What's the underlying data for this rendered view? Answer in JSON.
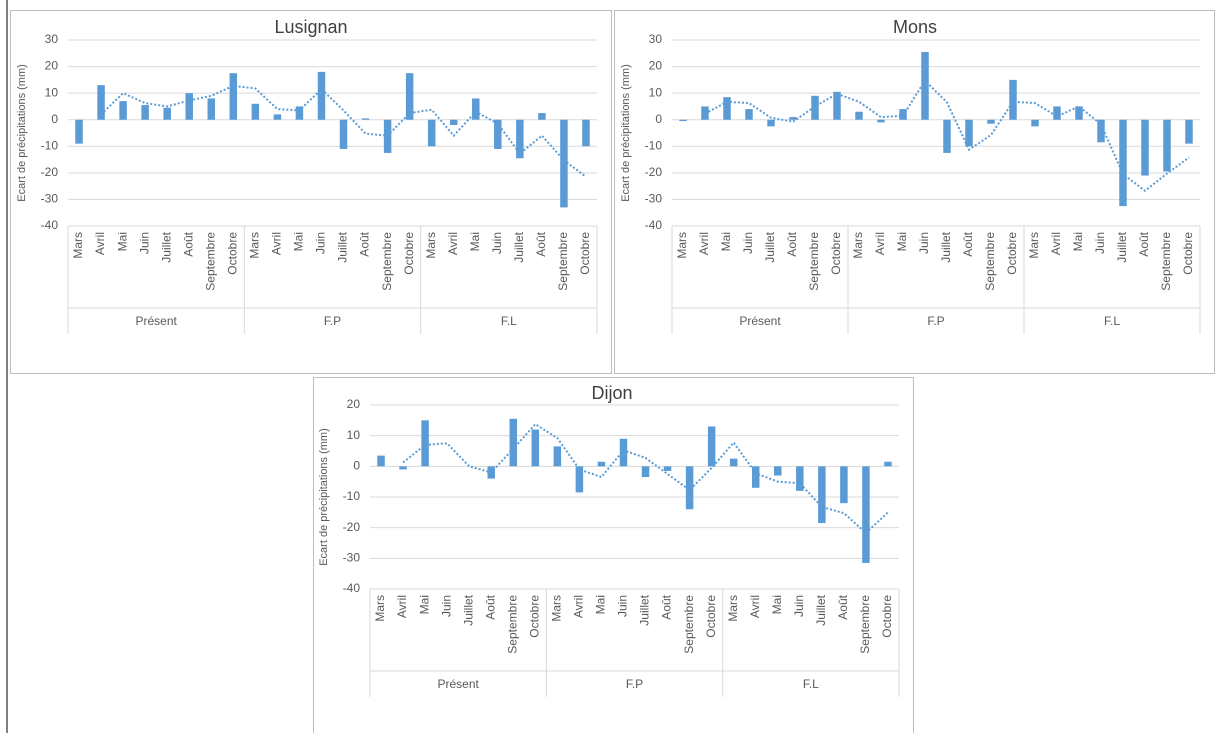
{
  "chart_data": [
    {
      "type": "bar",
      "title": "Lusignan",
      "ylabel": "Ecart de précipitations (mm)",
      "categories": [
        "Mars",
        "Avril",
        "Mai",
        "Juin",
        "Juillet",
        "Août",
        "Septembre",
        "Octobre",
        "Mars",
        "Avril",
        "Mai",
        "Juin",
        "Juillet",
        "Août",
        "Septembre",
        "Octobre",
        "Mars",
        "Avril",
        "Mai",
        "Juin",
        "Juillet",
        "Août",
        "Septembre",
        "Octobre"
      ],
      "group_labels": [
        "Présent",
        "F.P",
        "F.L"
      ],
      "values": [
        -9,
        13,
        7,
        5.5,
        4.5,
        10,
        8,
        17.5,
        6,
        2,
        5,
        18,
        -11,
        0.5,
        -12.5,
        17.5,
        -10,
        -2,
        8,
        -11,
        -14.5,
        2.5,
        -33,
        -10
      ],
      "color": "#5b9bd5",
      "trendline": {
        "style": "dotted",
        "color": "#5b9bd5",
        "values": [
          null,
          2,
          10,
          6.25,
          5,
          7.25,
          9,
          12.75,
          11.75,
          4,
          3.5,
          11.5,
          3.5,
          -5.25,
          -6,
          2.5,
          3.75,
          -6,
          3,
          -1.5,
          -12.75,
          -6,
          -15.25,
          -21.5
        ]
      },
      "ylim": [
        -40,
        30
      ],
      "yticks": [
        -40,
        -30,
        -20,
        -10,
        0,
        10,
        20,
        30
      ],
      "grid": true
    },
    {
      "type": "bar",
      "title": "Mons",
      "ylabel": "Ecart de précipitations (mm)",
      "categories": [
        "Mars",
        "Avril",
        "Mai",
        "Juin",
        "Juillet",
        "Août",
        "Septembre",
        "Octobre",
        "Mars",
        "Avril",
        "Mai",
        "Juin",
        "Juillet",
        "Août",
        "Septembre",
        "Octobre",
        "Mars",
        "Avril",
        "Mai",
        "Juin",
        "Juillet",
        "Août",
        "Septembre",
        "Octobre"
      ],
      "group_labels": [
        "Présent",
        "F.P",
        "F.L"
      ],
      "values": [
        -0.5,
        5,
        8.5,
        4,
        -2.5,
        1,
        9,
        10.5,
        3,
        -1,
        4,
        25.5,
        -12.5,
        -10,
        -1.5,
        15,
        -2.5,
        5,
        5,
        -8.5,
        -32.5,
        -21,
        -19.5,
        -9
      ],
      "color": "#5b9bd5",
      "trendline": {
        "style": "dotted",
        "color": "#5b9bd5",
        "values": [
          null,
          2.25,
          6.75,
          6.25,
          0.75,
          -0.75,
          5,
          9.75,
          6.75,
          1,
          1.5,
          14.75,
          6.5,
          -11.25,
          -5.75,
          6.75,
          6.25,
          1.25,
          5,
          -1.75,
          -20.5,
          -26.75,
          -20.25,
          -14.25
        ]
      },
      "ylim": [
        -40,
        30
      ],
      "yticks": [
        -40,
        -30,
        -20,
        -10,
        0,
        10,
        20,
        30
      ],
      "grid": true
    },
    {
      "type": "bar",
      "title": "Dijon",
      "ylabel": "Ecart de précipitations (mm)",
      "categories": [
        "Mars",
        "Avril",
        "Mai",
        "Juin",
        "Juillet",
        "Août",
        "Septembre",
        "Octobre",
        "Mars",
        "Avril",
        "Mai",
        "Juin",
        "Juillet",
        "Août",
        "Septembre",
        "Octobre",
        "Mars",
        "Avril",
        "Mai",
        "Juin",
        "Juillet",
        "Août",
        "Septembre",
        "Octobre"
      ],
      "group_labels": [
        "Présent",
        "F.P",
        "F.L"
      ],
      "values": [
        3.5,
        -1,
        15,
        0,
        0,
        -4,
        15.5,
        12,
        6.5,
        -8.5,
        1.5,
        9,
        -3.5,
        -1.5,
        -14,
        13,
        2.5,
        -7,
        -3,
        -8,
        -18.5,
        -12,
        -31.5,
        1.5
      ],
      "color": "#5b9bd5",
      "trendline": {
        "style": "dotted",
        "color": "#5b9bd5",
        "values": [
          null,
          1.25,
          7,
          7.5,
          0,
          -2,
          5.75,
          13.75,
          9.25,
          -1,
          -3.5,
          5.25,
          2.75,
          -2.5,
          -7.75,
          -0.5,
          7.75,
          -2.25,
          -5,
          -5.5,
          -13.25,
          -15.25,
          -21.75,
          -15
        ]
      },
      "ylim": [
        -40,
        20
      ],
      "yticks": [
        -40,
        -30,
        -20,
        -10,
        0,
        10,
        20
      ],
      "grid": true
    }
  ]
}
